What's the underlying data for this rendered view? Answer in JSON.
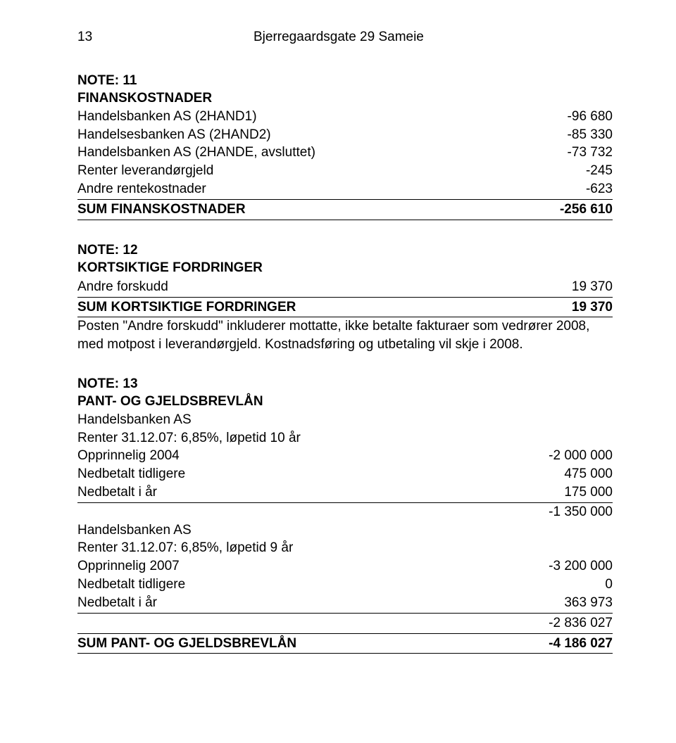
{
  "header": {
    "page_number": "13",
    "company": "Bjerregaardsgate 29 Sameie"
  },
  "note11": {
    "heading": "NOTE: 11",
    "title": "FINANSKOSTNADER",
    "rows": [
      {
        "label": "Handelsbanken AS (2HAND1)",
        "value": "-96 680"
      },
      {
        "label": "Handelsesbanken AS (2HAND2)",
        "value": "-85 330"
      },
      {
        "label": "Handelsbanken AS (2HANDE, avsluttet)",
        "value": "-73 732"
      },
      {
        "label": "Renter leverandørgjeld",
        "value": "-245"
      },
      {
        "label": "Andre rentekostnader",
        "value": "-623"
      }
    ],
    "sum_label": "SUM FINANSKOSTNADER",
    "sum_value": "-256 610"
  },
  "note12": {
    "heading": "NOTE: 12",
    "title": "KORTSIKTIGE FORDRINGER",
    "rows": [
      {
        "label": "Andre forskudd",
        "value": "19 370"
      }
    ],
    "sum_label": "SUM KORTSIKTIGE FORDRINGER",
    "sum_value": "19 370",
    "desc1": "Posten \"Andre forskudd\" inkluderer mottatte, ikke betalte fakturaer som vedrører 2008,",
    "desc2": "med motpost i leverandørgjeld. Kostnadsføring og utbetaling vil skje i 2008."
  },
  "note13": {
    "heading": "NOTE: 13",
    "title": "PANT- OG GJELDSBREVLÅN",
    "loan1": {
      "bank": "Handelsbanken AS",
      "terms": "Renter 31.12.07: 6,85%, løpetid 10 år",
      "rows": [
        {
          "label": "Opprinnelig 2004",
          "value": "-2 000 000"
        },
        {
          "label": "Nedbetalt tidligere",
          "value": "475 000"
        },
        {
          "label": "Nedbetalt i år",
          "value": "175 000"
        }
      ],
      "subtotal": "-1 350 000"
    },
    "loan2": {
      "bank": "Handelsbanken AS",
      "terms": "Renter 31.12.07: 6,85%, løpetid 9 år",
      "rows": [
        {
          "label": "Opprinnelig 2007",
          "value": "-3 200 000"
        },
        {
          "label": "Nedbetalt tidligere",
          "value": "0"
        },
        {
          "label": "Nedbetalt i år",
          "value": "363 973"
        }
      ],
      "subtotal": "-2 836 027"
    },
    "sum_label": "SUM PANT- OG GJELDSBREVLÅN",
    "sum_value": "-4 186 027"
  }
}
